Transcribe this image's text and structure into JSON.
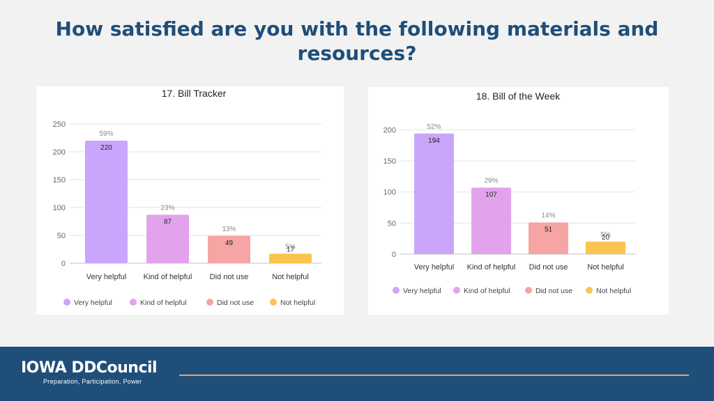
{
  "page": {
    "title_lines": [
      "How satisfied are you with the following materials and",
      "resources?"
    ]
  },
  "footer": {
    "logo_text": "IOWA DDCouncil",
    "tagline": "Preparation, Participation, Power",
    "accent_color": "#1f4e79",
    "rule_color": "#e8a46d"
  },
  "chart_data": [
    {
      "type": "bar",
      "title": "17. Bill Tracker",
      "categories": [
        "Very helpful",
        "Kind of helpful",
        "Did not use",
        "Not helpful"
      ],
      "values": [
        220,
        87,
        49,
        17
      ],
      "percent_labels": [
        "59%",
        "23%",
        "13%",
        "5%"
      ],
      "colors": [
        "#c9a6fc",
        "#e2a3ec",
        "#f7a4a4",
        "#fbc34f"
      ],
      "yticks": [
        0,
        50,
        100,
        150,
        200,
        250
      ],
      "ylim": [
        0,
        250
      ],
      "grid": true,
      "legend_position": "bottom",
      "legend": [
        "Very helpful",
        "Kind of helpful",
        "Did not use",
        "Not helpful"
      ]
    },
    {
      "type": "bar",
      "title": "18. Bill of the Week",
      "categories": [
        "Very helpful",
        "Kind of helpful",
        "Did not use",
        "Not helpful"
      ],
      "values": [
        194,
        107,
        51,
        20
      ],
      "percent_labels": [
        "52%",
        "29%",
        "14%",
        "5%"
      ],
      "colors": [
        "#c9a6fc",
        "#e2a3ec",
        "#f7a4a4",
        "#fbc34f"
      ],
      "yticks": [
        0,
        50,
        100,
        150,
        200
      ],
      "ylim": [
        0,
        215
      ],
      "grid": true,
      "legend_position": "bottom",
      "legend": [
        "Very helpful",
        "Kind of helpful",
        "Did not use",
        "Not helpful"
      ]
    }
  ]
}
